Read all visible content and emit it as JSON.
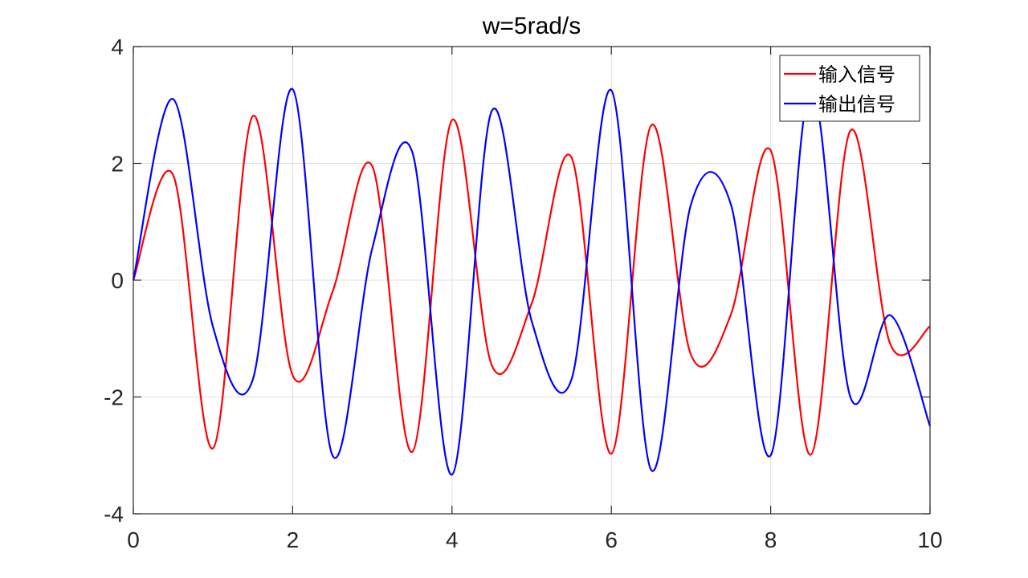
{
  "chart_data": {
    "type": "line",
    "title": "w=5rad/s",
    "xlabel": "",
    "ylabel": "",
    "xlim": [
      0,
      10
    ],
    "ylim": [
      -4,
      4
    ],
    "x_ticks": [
      0,
      2,
      4,
      6,
      8,
      10
    ],
    "y_ticks": [
      -4,
      -2,
      0,
      2,
      4
    ],
    "x_tick_labels": [
      "0",
      "2",
      "4",
      "6",
      "8",
      "10"
    ],
    "y_tick_labels": [
      "-4",
      "-2",
      "0",
      "2",
      "4"
    ],
    "grid": true,
    "legend_position": "top-right",
    "x": [
      0,
      0.5,
      1,
      1.5,
      2,
      2.5,
      3,
      3.5,
      4,
      4.5,
      5,
      5.5,
      6,
      6.5,
      7,
      7.5,
      8,
      8.5,
      9,
      9.5,
      10
    ],
    "series": [
      {
        "name": "输入信号",
        "color": "#ff0000",
        "values": [
          0,
          1.8,
          -2.88,
          2.81,
          -1.63,
          -0.2,
          1.95,
          -2.94,
          2.74,
          -1.46,
          -0.4,
          2.1,
          -2.97,
          2.65,
          -1.28,
          -0.59,
          2.22,
          -2.99,
          2.56,
          -1.09,
          -0.79
        ]
      },
      {
        "name": "输出信号",
        "color": "#0000ff",
        "values": [
          0,
          3.1,
          -0.8,
          -1.7,
          3.27,
          -3.0,
          0.55,
          2.2,
          -3.33,
          2.9,
          -0.7,
          -1.7,
          3.25,
          -3.25,
          1.3,
          1.3,
          -3.0,
          3.3,
          -2.0,
          -0.6,
          -2.5
        ]
      }
    ]
  }
}
